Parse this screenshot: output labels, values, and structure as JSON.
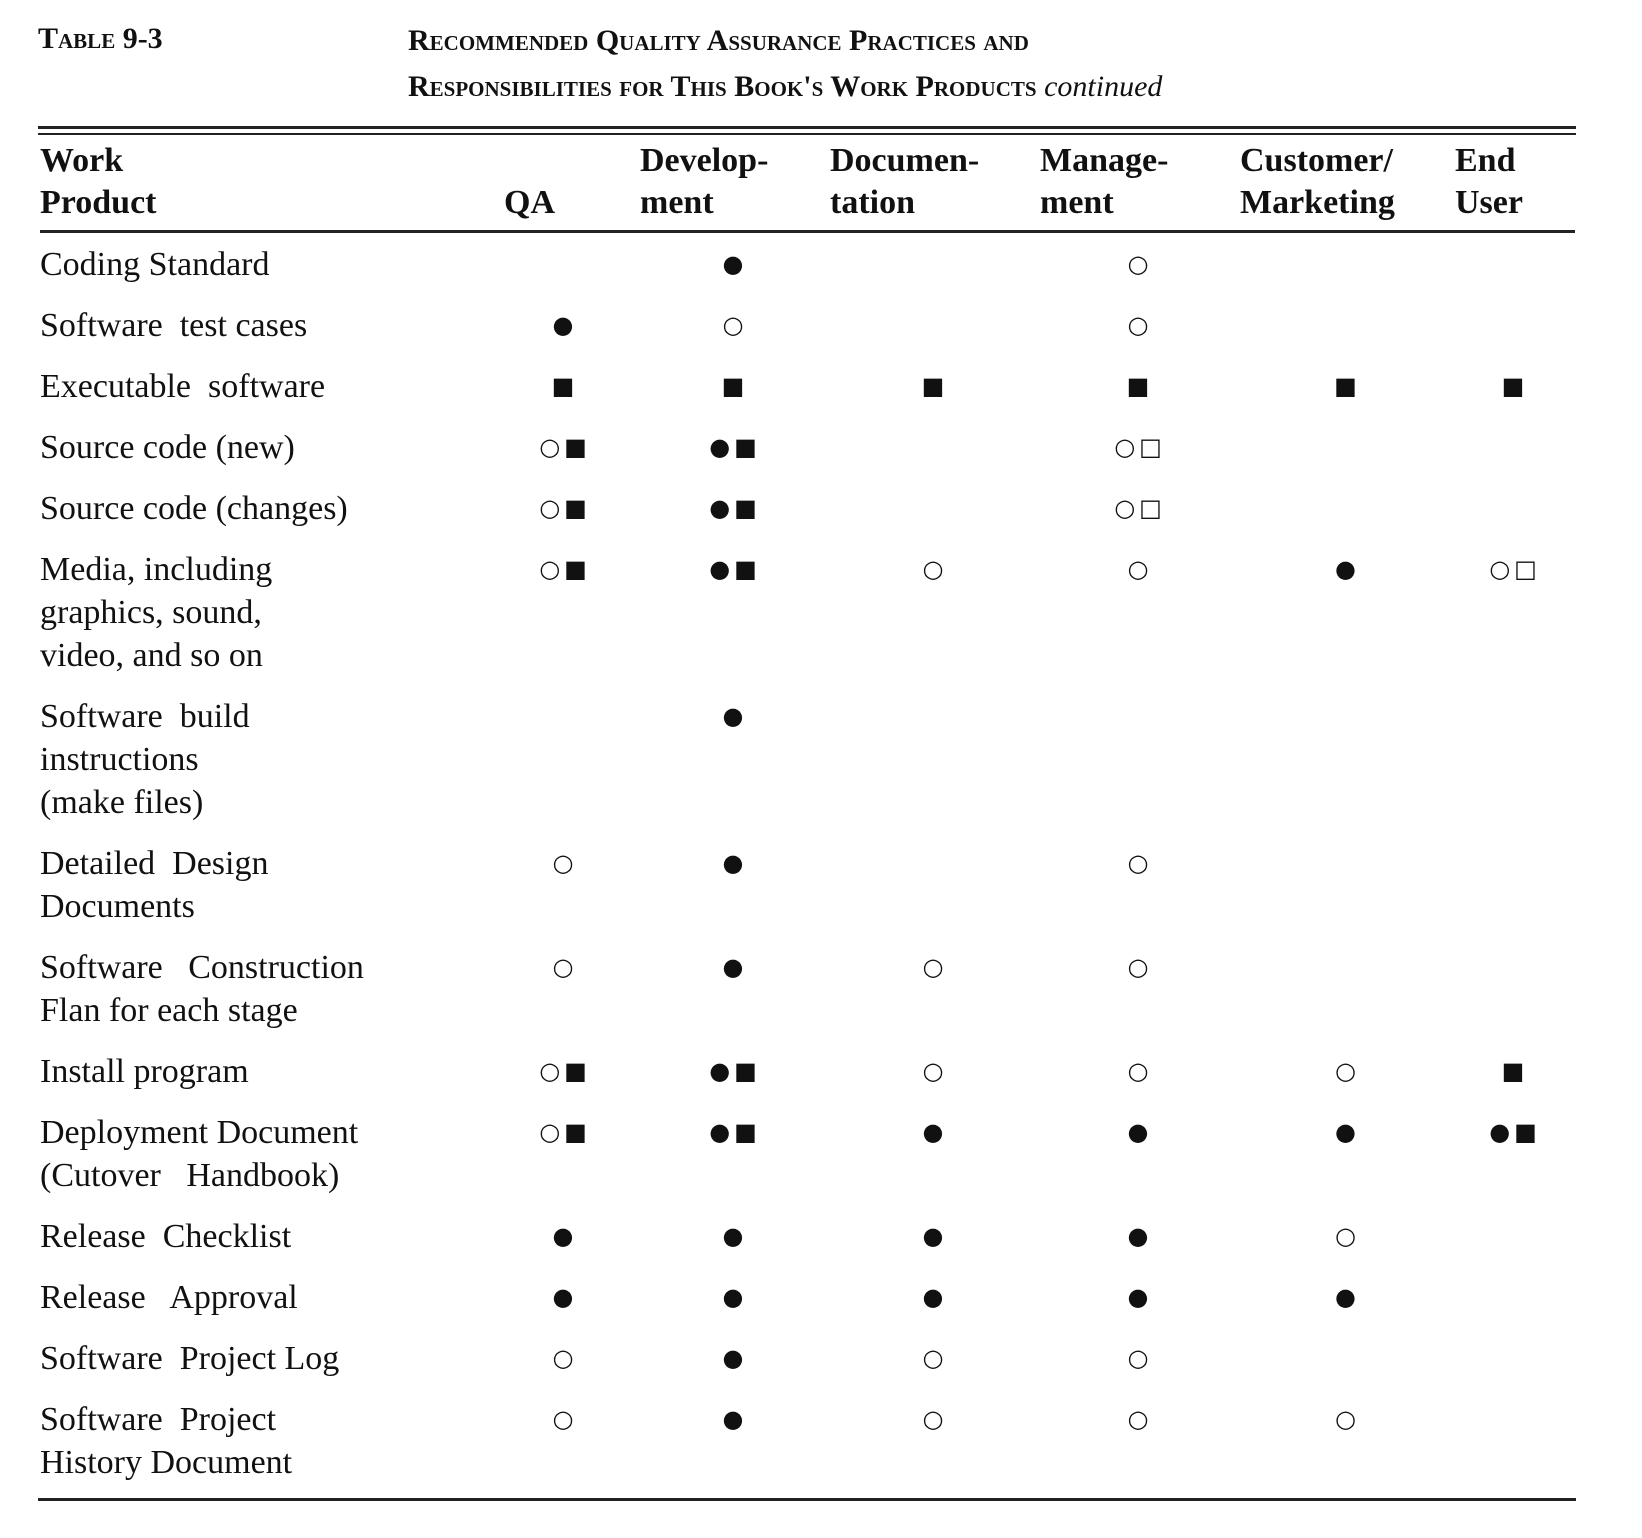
{
  "header": {
    "label": "Table 9-3",
    "title_line_1": "Recommended Quality Assurance Practices and",
    "title_line_2": "Responsibilities for This Book's Work Products",
    "title_note": "continued"
  },
  "table": {
    "columns": [
      "Work\nProduct",
      "QA",
      "Develop-\nment",
      "Documen-\ntation",
      "Manage-\nment",
      "Customer/\nMarketing",
      "End\nUser"
    ],
    "rows": [
      {
        "label": "Coding Standard",
        "marks": [
          null,
          "●",
          null,
          "○",
          null,
          null
        ]
      },
      {
        "label": "Software  test cases",
        "marks": [
          "●",
          "○",
          null,
          "○",
          null,
          null
        ]
      },
      {
        "label": "Executable  software",
        "marks": [
          "■",
          "■",
          "■",
          "■",
          "■",
          "■"
        ]
      },
      {
        "label": "Source code (new)",
        "marks": [
          "○■",
          "●■",
          null,
          "○□",
          null,
          null
        ]
      },
      {
        "label": "Source code (changes)",
        "marks": [
          "○■",
          "●■",
          null,
          "○□",
          null,
          null
        ]
      },
      {
        "label": "Media, including\ngraphics, sound,\nvideo, and so on",
        "marks": [
          "○■",
          "●■",
          "○",
          "○",
          "●",
          "○□"
        ]
      },
      {
        "label": "Software  build\ninstructions\n(make files)",
        "marks": [
          null,
          "●",
          null,
          null,
          null,
          null
        ]
      },
      {
        "label": "Detailed  Design\nDocuments",
        "marks": [
          "○",
          "●",
          null,
          "○",
          null,
          null
        ]
      },
      {
        "label": "Software   Construction\nFlan for each stage",
        "marks": [
          "○",
          "●",
          "○",
          "○",
          null,
          null
        ]
      },
      {
        "label": "Install program",
        "marks": [
          "○■",
          "●■",
          "○",
          "○",
          "○",
          "■"
        ]
      },
      {
        "label": "Deployment Document\n(Cutover   Handbook)",
        "marks": [
          "○■",
          "●■",
          "●",
          "●",
          "●",
          "●■"
        ]
      },
      {
        "label": "Release  Checklist",
        "marks": [
          "●",
          "●",
          "●",
          "●",
          "○",
          null
        ]
      },
      {
        "label": "Release   Approval",
        "marks": [
          "●",
          "●",
          "●",
          "●",
          "●",
          null
        ]
      },
      {
        "label": "Software  Project Log",
        "marks": [
          "○",
          "●",
          "○",
          "○",
          null,
          null
        ]
      },
      {
        "label": "Software  Project\nHistory Document",
        "marks": [
          "○",
          "●",
          "○",
          "○",
          "○",
          null
        ]
      }
    ]
  }
}
